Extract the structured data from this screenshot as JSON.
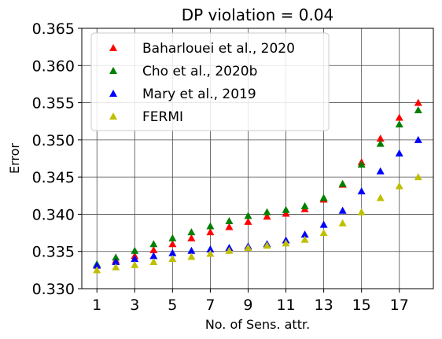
{
  "chart_data": {
    "type": "scatter",
    "title": "DP violation = 0.04",
    "xlabel": "No. of Sens. attr.",
    "ylabel": "Error",
    "xlim": [
      0.2,
      18.8
    ],
    "ylim": [
      0.33,
      0.365
    ],
    "xticks": [
      1,
      3,
      5,
      7,
      9,
      11,
      13,
      15,
      17
    ],
    "yticks": [
      0.33,
      0.335,
      0.34,
      0.345,
      0.35,
      0.355,
      0.36,
      0.365
    ],
    "ytick_labels": [
      "0.330",
      "0.335",
      "0.340",
      "0.345",
      "0.350",
      "0.355",
      "0.360",
      "0.365"
    ],
    "grid": true,
    "legend_position": "top-left",
    "marker": "triangle",
    "x": [
      1,
      2,
      3,
      4,
      5,
      6,
      7,
      8,
      9,
      10,
      11,
      12,
      13,
      14,
      15,
      16,
      17,
      18
    ],
    "series": [
      {
        "name": "Baharlouei et al., 2020",
        "color": "#ff0000",
        "values": [
          0.3332,
          0.3338,
          0.3344,
          0.3352,
          0.336,
          0.3368,
          0.3376,
          0.3383,
          0.339,
          0.3397,
          0.3401,
          0.3407,
          0.342,
          0.344,
          0.347,
          0.3502,
          0.353,
          0.355
        ]
      },
      {
        "name": "Cho et al., 2020b",
        "color": "#008000",
        "values": [
          0.3333,
          0.3342,
          0.3351,
          0.336,
          0.3368,
          0.3376,
          0.3384,
          0.3391,
          0.3398,
          0.3403,
          0.3406,
          0.3411,
          0.3422,
          0.3441,
          0.3467,
          0.3495,
          0.3521,
          0.354
        ]
      },
      {
        "name": "Mary et al., 2019",
        "color": "#0000ff",
        "values": [
          0.3331,
          0.3336,
          0.334,
          0.3344,
          0.3348,
          0.3351,
          0.3353,
          0.3355,
          0.3357,
          0.336,
          0.3365,
          0.3373,
          0.3386,
          0.3405,
          0.3431,
          0.3458,
          0.3482,
          0.35
        ]
      },
      {
        "name": "FERMI",
        "color": "#bfbf00",
        "values": [
          0.3325,
          0.3329,
          0.3332,
          0.3336,
          0.334,
          0.3343,
          0.3347,
          0.3351,
          0.3355,
          0.3358,
          0.3361,
          0.3366,
          0.3375,
          0.3388,
          0.3403,
          0.3422,
          0.3438,
          0.345
        ]
      }
    ]
  }
}
